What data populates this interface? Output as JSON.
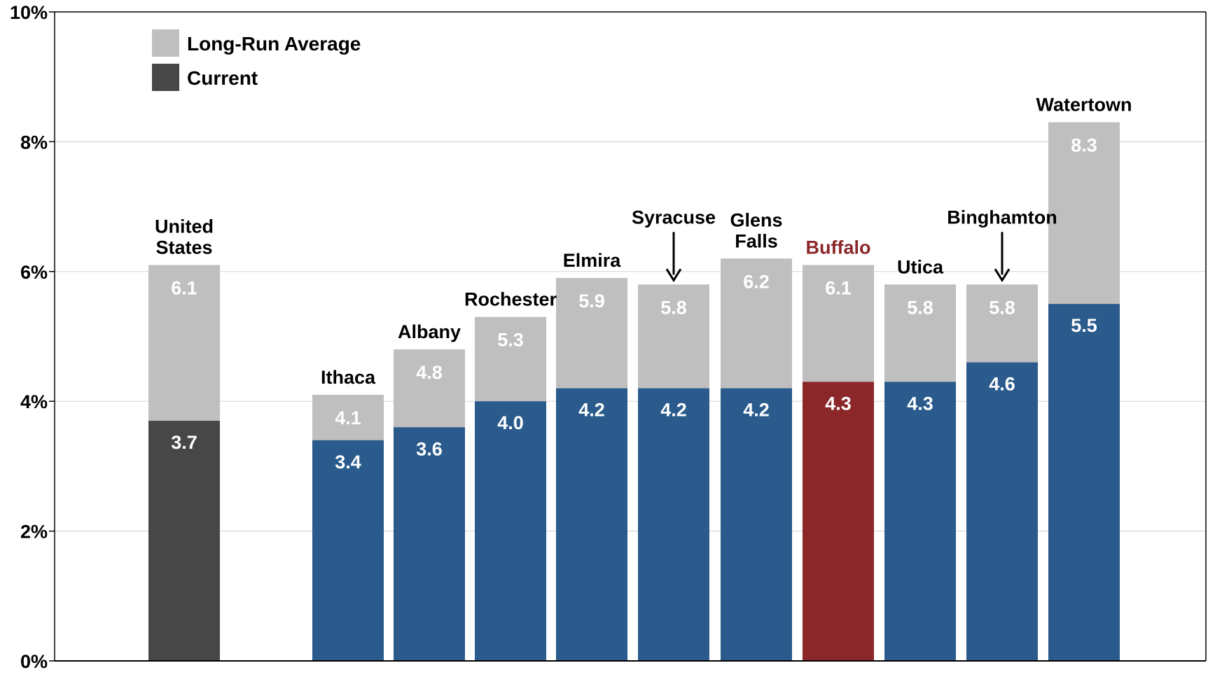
{
  "chart_data": {
    "type": "bar",
    "stacked_overlay": true,
    "ylim": [
      0,
      10
    ],
    "yticks": [
      0,
      2,
      4,
      6,
      8,
      10
    ],
    "ytick_labels": [
      "0%",
      "2%",
      "4%",
      "6%",
      "8%",
      "10%"
    ],
    "grid": true,
    "legend_position": "top-left",
    "legend": [
      {
        "name": "Long-Run Average",
        "color": "#bfbfbf"
      },
      {
        "name": "Current",
        "color": "#474747"
      }
    ],
    "categories": [
      {
        "label": [
          "United",
          "States"
        ],
        "long_run": 6.1,
        "current": 3.7,
        "long_run_label": "6.1",
        "current_label": "3.7",
        "current_color": "#474747",
        "label_color": "#000000"
      },
      {
        "label": [
          "Ithaca"
        ],
        "long_run": 4.1,
        "current": 3.4,
        "long_run_label": "4.1",
        "current_label": "3.4",
        "current_color": "#2a5b8c",
        "label_color": "#000000"
      },
      {
        "label": [
          "Albany"
        ],
        "long_run": 4.8,
        "current": 3.6,
        "long_run_label": "4.8",
        "current_label": "3.6",
        "current_color": "#2a5b8c",
        "label_color": "#000000"
      },
      {
        "label": [
          "Rochester"
        ],
        "long_run": 5.3,
        "current": 4.0,
        "long_run_label": "5.3",
        "current_label": "4.0",
        "current_color": "#2a5b8c",
        "label_color": "#000000"
      },
      {
        "label": [
          "Elmira"
        ],
        "long_run": 5.9,
        "current": 4.2,
        "long_run_label": "5.9",
        "current_label": "4.2",
        "current_color": "#2a5b8c",
        "label_color": "#000000"
      },
      {
        "label": [
          "Syracuse"
        ],
        "long_run": 5.8,
        "current": 4.2,
        "long_run_label": "5.8",
        "current_label": "4.2",
        "current_color": "#2a5b8c",
        "label_color": "#000000",
        "arrow": true
      },
      {
        "label": [
          "Glens",
          "Falls"
        ],
        "long_run": 6.2,
        "current": 4.2,
        "long_run_label": "6.2",
        "current_label": "4.2",
        "current_color": "#2a5b8c",
        "label_color": "#000000"
      },
      {
        "label": [
          "Buffalo"
        ],
        "long_run": 6.1,
        "current": 4.3,
        "long_run_label": "6.1",
        "current_label": "4.3",
        "current_color": "#8b2729",
        "label_color": "#8b2729"
      },
      {
        "label": [
          "Utica"
        ],
        "long_run": 5.8,
        "current": 4.3,
        "long_run_label": "5.8",
        "current_label": "4.3",
        "current_color": "#2a5b8c",
        "label_color": "#000000"
      },
      {
        "label": [
          "Binghamton"
        ],
        "long_run": 5.8,
        "current": 4.6,
        "long_run_label": "5.8",
        "current_label": "4.6",
        "current_color": "#2a5b8c",
        "label_color": "#000000",
        "arrow": true
      },
      {
        "label": [
          "Watertown"
        ],
        "long_run": 8.3,
        "current": 5.5,
        "long_run_label": "8.3",
        "current_label": "5.5",
        "current_color": "#2a5b8c",
        "label_color": "#000000"
      }
    ]
  }
}
